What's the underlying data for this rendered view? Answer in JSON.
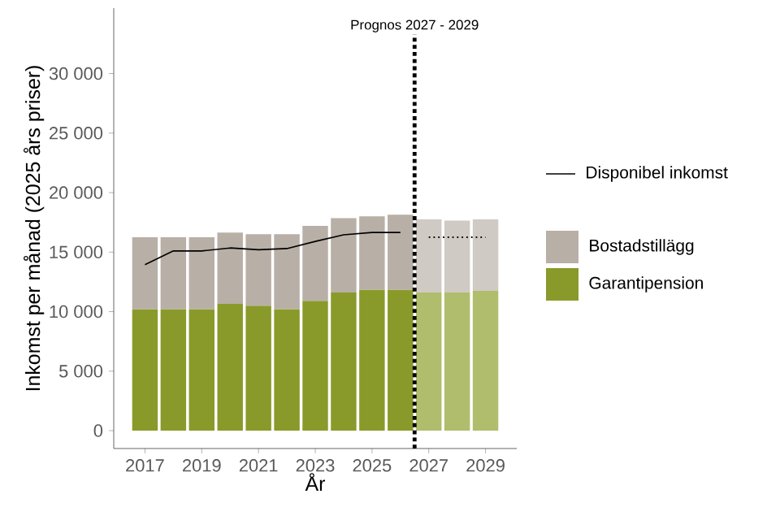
{
  "chart_data": {
    "type": "bar",
    "stacked": true,
    "xlabel": "År",
    "ylabel": "Inkomst per månad (2025 års priser)",
    "x": [
      2017,
      2018,
      2019,
      2020,
      2021,
      2022,
      2023,
      2024,
      2025,
      2026,
      2027,
      2028,
      2029
    ],
    "series": [
      {
        "name": "Garantipension",
        "color": "#8a9a2a",
        "colors": [
          "#8a9a2a",
          "#8a9a2a",
          "#8a9a2a",
          "#8a9a2a",
          "#8a9a2a",
          "#8a9a2a",
          "#8a9a2a",
          "#8a9a2a",
          "#8a9a2a",
          "#8a9a2a",
          "#b0bd6c",
          "#b0bd6c",
          "#b0bd6c"
        ],
        "values": [
          10200,
          10200,
          10200,
          10650,
          10500,
          10200,
          10900,
          11600,
          11850,
          11850,
          11600,
          11600,
          11750
        ]
      },
      {
        "name": "Bostadstillägg",
        "color": "#b8afa6",
        "colors": [
          "#b8afa6",
          "#b8afa6",
          "#b8afa6",
          "#b8afa6",
          "#b8afa6",
          "#b8afa6",
          "#b8afa6",
          "#b8afa6",
          "#b8afa6",
          "#b8afa6",
          "#cfcac4",
          "#cfcac4",
          "#cfcac4"
        ],
        "values": [
          6050,
          6050,
          6050,
          6000,
          6000,
          6300,
          6300,
          6250,
          6150,
          6300,
          6150,
          6050,
          6000
        ]
      },
      {
        "name": "Disponibel inkomst",
        "type": "line",
        "color": "#000000",
        "line_style": "solid",
        "x": [
          2017,
          2018,
          2019,
          2020,
          2021,
          2022,
          2023,
          2024,
          2025,
          2026
        ],
        "values": [
          13950,
          15100,
          15100,
          15350,
          15200,
          15300,
          15900,
          16450,
          16650,
          16650
        ]
      },
      {
        "type": "line",
        "color": "#000000",
        "line_style": "dotted",
        "x": [
          2027,
          2029
        ],
        "values": [
          16250,
          16250
        ]
      }
    ],
    "xlim": [
      2015.9,
      2030.1
    ],
    "xticks": [
      2017,
      2019,
      2021,
      2023,
      2025,
      2027,
      2029
    ],
    "ylim": [
      -1500,
      35500
    ],
    "yticks": [
      {
        "value": 0,
        "label": "0"
      },
      {
        "value": 5000,
        "label": "5 000"
      },
      {
        "value": 10000,
        "label": "10 000"
      },
      {
        "value": 15000,
        "label": "15 000"
      },
      {
        "value": 20000,
        "label": "20 000"
      },
      {
        "value": 25000,
        "label": "25 000"
      },
      {
        "value": 30000,
        "label": "30 000"
      }
    ],
    "ref_lines": [
      {
        "axis": "x",
        "value": 2026.5,
        "label": "Prognos 2027 - 2029",
        "line_style": "dotted",
        "color": "#000000"
      }
    ],
    "legend": "right"
  }
}
